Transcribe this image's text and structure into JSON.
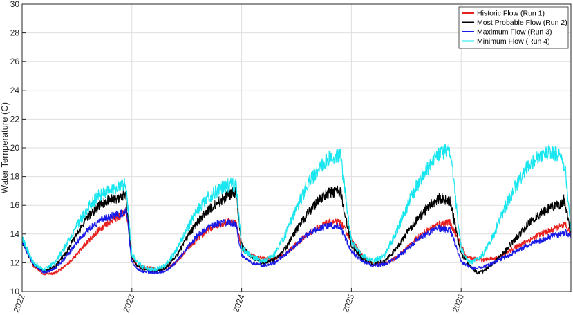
{
  "chart_data": {
    "type": "line",
    "title": "",
    "xlabel": "",
    "ylabel": "Water Temperature (C)",
    "xlim": [
      2022,
      2027
    ],
    "ylim": [
      10,
      30
    ],
    "xticks": [
      2022,
      2023,
      2024,
      2025,
      2026
    ],
    "yticks": [
      10,
      12,
      14,
      16,
      18,
      20,
      22,
      24,
      26,
      28,
      30
    ],
    "grid": true,
    "legend_position": "top-right",
    "series": [
      {
        "name": "Historic Flow (Run 1)",
        "color": "#e8201e",
        "noise": 0.28,
        "points": [
          [
            2022.0,
            13.6
          ],
          [
            2022.1,
            11.8
          ],
          [
            2022.2,
            11.2
          ],
          [
            2022.3,
            11.3
          ],
          [
            2022.4,
            11.8
          ],
          [
            2022.5,
            12.6
          ],
          [
            2022.6,
            13.5
          ],
          [
            2022.7,
            14.3
          ],
          [
            2022.8,
            14.9
          ],
          [
            2022.9,
            15.3
          ],
          [
            2022.95,
            15.6
          ],
          [
            2023.0,
            12.3
          ],
          [
            2023.05,
            11.8
          ],
          [
            2023.1,
            11.7
          ],
          [
            2023.2,
            11.6
          ],
          [
            2023.3,
            11.6
          ],
          [
            2023.4,
            12.0
          ],
          [
            2023.5,
            12.9
          ],
          [
            2023.6,
            13.7
          ],
          [
            2023.7,
            14.3
          ],
          [
            2023.8,
            14.7
          ],
          [
            2023.9,
            14.9
          ],
          [
            2023.95,
            14.8
          ],
          [
            2024.0,
            13.0
          ],
          [
            2024.1,
            12.5
          ],
          [
            2024.2,
            12.3
          ],
          [
            2024.3,
            12.3
          ],
          [
            2024.4,
            12.6
          ],
          [
            2024.5,
            13.3
          ],
          [
            2024.6,
            14.0
          ],
          [
            2024.7,
            14.5
          ],
          [
            2024.8,
            14.8
          ],
          [
            2024.9,
            14.8
          ],
          [
            2025.0,
            13.6
          ],
          [
            2025.1,
            12.5
          ],
          [
            2025.2,
            11.9
          ],
          [
            2025.3,
            11.9
          ],
          [
            2025.4,
            12.3
          ],
          [
            2025.5,
            13.0
          ],
          [
            2025.6,
            13.7
          ],
          [
            2025.7,
            14.3
          ],
          [
            2025.8,
            14.7
          ],
          [
            2025.9,
            14.8
          ],
          [
            2026.0,
            13.2
          ],
          [
            2026.05,
            12.4
          ],
          [
            2026.1,
            12.3
          ],
          [
            2026.2,
            12.2
          ],
          [
            2026.3,
            12.3
          ],
          [
            2026.4,
            12.6
          ],
          [
            2026.5,
            13.1
          ],
          [
            2026.6,
            13.5
          ],
          [
            2026.7,
            13.9
          ],
          [
            2026.8,
            14.2
          ],
          [
            2026.9,
            14.5
          ],
          [
            2026.95,
            14.6
          ],
          [
            2027.0,
            14.0
          ]
        ]
      },
      {
        "name": "Most Probable Flow (Run 2)",
        "color": "#000000",
        "noise": 0.32,
        "points": [
          [
            2022.0,
            13.5
          ],
          [
            2022.1,
            11.9
          ],
          [
            2022.2,
            11.4
          ],
          [
            2022.3,
            11.7
          ],
          [
            2022.4,
            12.7
          ],
          [
            2022.5,
            14.0
          ],
          [
            2022.6,
            15.2
          ],
          [
            2022.7,
            16.0
          ],
          [
            2022.8,
            16.4
          ],
          [
            2022.9,
            16.6
          ],
          [
            2022.94,
            16.9
          ],
          [
            2023.0,
            12.3
          ],
          [
            2023.05,
            11.8
          ],
          [
            2023.1,
            11.6
          ],
          [
            2023.2,
            11.4
          ],
          [
            2023.3,
            11.6
          ],
          [
            2023.4,
            12.4
          ],
          [
            2023.5,
            13.7
          ],
          [
            2023.6,
            14.9
          ],
          [
            2023.7,
            15.7
          ],
          [
            2023.8,
            16.3
          ],
          [
            2023.9,
            16.8
          ],
          [
            2023.95,
            16.9
          ],
          [
            2024.0,
            13.2
          ],
          [
            2024.1,
            12.3
          ],
          [
            2024.2,
            12.0
          ],
          [
            2024.3,
            12.2
          ],
          [
            2024.4,
            13.0
          ],
          [
            2024.5,
            14.3
          ],
          [
            2024.6,
            15.4
          ],
          [
            2024.7,
            16.3
          ],
          [
            2024.8,
            16.9
          ],
          [
            2024.9,
            17.0
          ],
          [
            2025.0,
            13.2
          ],
          [
            2025.1,
            12.3
          ],
          [
            2025.2,
            11.9
          ],
          [
            2025.3,
            12.1
          ],
          [
            2025.4,
            12.9
          ],
          [
            2025.5,
            14.0
          ],
          [
            2025.6,
            15.0
          ],
          [
            2025.7,
            15.9
          ],
          [
            2025.8,
            16.5
          ],
          [
            2025.9,
            16.3
          ],
          [
            2026.0,
            12.6
          ],
          [
            2026.1,
            11.6
          ],
          [
            2026.15,
            11.3
          ],
          [
            2026.2,
            11.4
          ],
          [
            2026.3,
            12.0
          ],
          [
            2026.4,
            12.8
          ],
          [
            2026.5,
            13.7
          ],
          [
            2026.6,
            14.6
          ],
          [
            2026.7,
            15.3
          ],
          [
            2026.8,
            15.8
          ],
          [
            2026.9,
            16.1
          ],
          [
            2026.94,
            16.4
          ],
          [
            2027.0,
            14.0
          ]
        ]
      },
      {
        "name": "Maximum Flow (Run 3)",
        "color": "#1a1ae6",
        "noise": 0.28,
        "points": [
          [
            2022.0,
            13.5
          ],
          [
            2022.1,
            11.9
          ],
          [
            2022.2,
            11.3
          ],
          [
            2022.3,
            11.6
          ],
          [
            2022.4,
            12.4
          ],
          [
            2022.5,
            13.4
          ],
          [
            2022.6,
            14.3
          ],
          [
            2022.7,
            14.9
          ],
          [
            2022.8,
            15.2
          ],
          [
            2022.9,
            15.4
          ],
          [
            2022.95,
            15.6
          ],
          [
            2023.0,
            12.0
          ],
          [
            2023.05,
            11.6
          ],
          [
            2023.1,
            11.4
          ],
          [
            2023.2,
            11.3
          ],
          [
            2023.3,
            11.4
          ],
          [
            2023.4,
            12.0
          ],
          [
            2023.5,
            13.0
          ],
          [
            2023.6,
            13.9
          ],
          [
            2023.7,
            14.5
          ],
          [
            2023.8,
            14.8
          ],
          [
            2023.9,
            14.8
          ],
          [
            2023.95,
            14.7
          ],
          [
            2024.0,
            12.5
          ],
          [
            2024.1,
            12.0
          ],
          [
            2024.2,
            11.8
          ],
          [
            2024.3,
            12.0
          ],
          [
            2024.4,
            12.6
          ],
          [
            2024.5,
            13.3
          ],
          [
            2024.6,
            14.0
          ],
          [
            2024.7,
            14.4
          ],
          [
            2024.8,
            14.6
          ],
          [
            2024.9,
            14.5
          ],
          [
            2025.0,
            12.8
          ],
          [
            2025.1,
            12.1
          ],
          [
            2025.2,
            11.8
          ],
          [
            2025.3,
            11.9
          ],
          [
            2025.4,
            12.3
          ],
          [
            2025.5,
            12.9
          ],
          [
            2025.6,
            13.6
          ],
          [
            2025.7,
            14.1
          ],
          [
            2025.8,
            14.4
          ],
          [
            2025.9,
            14.3
          ],
          [
            2026.0,
            12.1
          ],
          [
            2026.1,
            11.6
          ],
          [
            2026.2,
            11.7
          ],
          [
            2026.3,
            12.0
          ],
          [
            2026.4,
            12.4
          ],
          [
            2026.5,
            12.8
          ],
          [
            2026.6,
            13.2
          ],
          [
            2026.7,
            13.5
          ],
          [
            2026.8,
            13.8
          ],
          [
            2026.9,
            14.0
          ],
          [
            2026.95,
            14.1
          ],
          [
            2027.0,
            13.9
          ]
        ]
      },
      {
        "name": "Minimum Flow (Run 4)",
        "color": "#19e6ee",
        "noise": 0.38,
        "points": [
          [
            2022.0,
            13.7
          ],
          [
            2022.1,
            12.0
          ],
          [
            2022.2,
            11.5
          ],
          [
            2022.3,
            12.0
          ],
          [
            2022.4,
            13.2
          ],
          [
            2022.5,
            14.6
          ],
          [
            2022.6,
            15.8
          ],
          [
            2022.7,
            16.7
          ],
          [
            2022.8,
            17.1
          ],
          [
            2022.9,
            17.3
          ],
          [
            2022.94,
            17.7
          ],
          [
            2023.0,
            12.6
          ],
          [
            2023.05,
            12.0
          ],
          [
            2023.1,
            11.7
          ],
          [
            2023.2,
            11.5
          ],
          [
            2023.3,
            11.8
          ],
          [
            2023.4,
            12.8
          ],
          [
            2023.5,
            14.3
          ],
          [
            2023.6,
            15.7
          ],
          [
            2023.7,
            16.6
          ],
          [
            2023.8,
            17.1
          ],
          [
            2023.9,
            17.5
          ],
          [
            2023.95,
            17.4
          ],
          [
            2024.0,
            13.0
          ],
          [
            2024.1,
            12.4
          ],
          [
            2024.2,
            12.1
          ],
          [
            2024.3,
            12.6
          ],
          [
            2024.4,
            14.0
          ],
          [
            2024.5,
            15.8
          ],
          [
            2024.6,
            17.4
          ],
          [
            2024.7,
            18.6
          ],
          [
            2024.8,
            19.3
          ],
          [
            2024.9,
            19.5
          ],
          [
            2025.0,
            13.5
          ],
          [
            2025.1,
            12.5
          ],
          [
            2025.2,
            12.1
          ],
          [
            2025.3,
            12.5
          ],
          [
            2025.4,
            14.0
          ],
          [
            2025.5,
            15.8
          ],
          [
            2025.6,
            17.4
          ],
          [
            2025.7,
            18.6
          ],
          [
            2025.8,
            19.6
          ],
          [
            2025.9,
            19.9
          ],
          [
            2026.0,
            13.0
          ],
          [
            2026.05,
            12.2
          ],
          [
            2026.1,
            12.0
          ],
          [
            2026.2,
            12.6
          ],
          [
            2026.3,
            14.0
          ],
          [
            2026.4,
            15.8
          ],
          [
            2026.5,
            17.4
          ],
          [
            2026.6,
            18.6
          ],
          [
            2026.7,
            19.4
          ],
          [
            2026.8,
            19.7
          ],
          [
            2026.9,
            19.5
          ],
          [
            2026.95,
            18.6
          ],
          [
            2027.0,
            14.2
          ]
        ]
      }
    ]
  }
}
